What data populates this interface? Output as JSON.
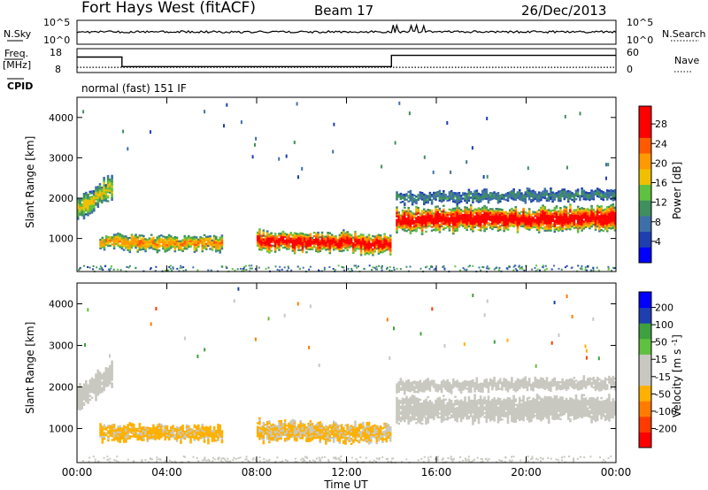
{
  "header": {
    "radar": "Fort Hays West (fitACF)",
    "beam": "Beam 17",
    "date": "26/Dec/2013"
  },
  "noise_panel": {
    "left_label": "N.Sky",
    "right_label": "N.Search",
    "left_ticks": [
      "10^5",
      "10^0"
    ],
    "right_ticks": [
      "10^5",
      "10^0"
    ]
  },
  "freq_panel": {
    "left_label_line1": "Freq.",
    "left_label_line2": "[MHz]",
    "left_ticks": [
      "18",
      "8"
    ],
    "right_label": "Nave",
    "right_ticks": [
      "60",
      "0"
    ],
    "series": [
      {
        "key": "freq",
        "style": "solid",
        "points": [
          [
            0,
            14.5
          ],
          [
            2,
            14.5
          ],
          [
            2,
            10.5
          ],
          [
            14,
            10.5
          ],
          [
            14,
            15.2
          ],
          [
            24,
            15.2
          ]
        ]
      },
      {
        "key": "nave",
        "style": "dotted",
        "points": [
          [
            0,
            10.2
          ],
          [
            24,
            10.2
          ]
        ]
      }
    ]
  },
  "cpid": {
    "label": "CPID",
    "program": "normal (fast) 151 IF"
  },
  "colors": {
    "power_scale": [
      "#0000ff",
      "#1f3fb0",
      "#3f6fa8",
      "#3f8f5f",
      "#60c040",
      "#f0c000",
      "#ff9900",
      "#ff5a00",
      "#ff0000",
      "#ff0000"
    ],
    "velocity_scale": [
      "#ff0000",
      "#ff3a00",
      "#ff7b00",
      "#ffb000",
      "#c8c8c0",
      "#c8c8c0",
      "#60c040",
      "#3fa040",
      "#1f3fb0",
      "#0000ff"
    ],
    "gray": "#c8c8c0"
  },
  "chart_data": [
    {
      "type": "heatmap",
      "title": "Power",
      "xlabel": "",
      "ylabel": "Slant Range [km]",
      "x_ticks": [
        "00:00",
        "04:00",
        "08:00",
        "12:00",
        "16:00",
        "20:00",
        "00:00"
      ],
      "y_ticks": [
        "1000",
        "2000",
        "3000",
        "4000"
      ],
      "xlim": [
        0,
        24
      ],
      "ylim": [
        180,
        4500
      ],
      "colorbar": {
        "label": "Power [dB]",
        "ticks": [
          "28",
          "24",
          "20",
          "16",
          "12",
          "8",
          "4"
        ],
        "range": [
          0,
          30
        ]
      },
      "regions": [
        {
          "t": [
            0,
            1.6
          ],
          "r_center": [
            1700,
            2300
          ],
          "half_width": 280,
          "peak": 16,
          "edge": 6
        },
        {
          "t": [
            1.0,
            6.5
          ],
          "r_center": [
            900,
            870
          ],
          "half_width": 180,
          "peak": 20,
          "edge": 7
        },
        {
          "t": [
            8.0,
            14.0
          ],
          "r_center": [
            950,
            870
          ],
          "half_width": 230,
          "peak": 27,
          "edge": 8
        },
        {
          "t": [
            14.2,
            24
          ],
          "r_center": [
            1450,
            1500
          ],
          "half_width": 280,
          "peak": 28,
          "edge": 8
        },
        {
          "t": [
            14.2,
            24
          ],
          "r_center": [
            2000,
            2100
          ],
          "half_width": 130,
          "peak": 10,
          "edge": 4
        }
      ]
    },
    {
      "type": "heatmap",
      "title": "Velocity",
      "xlabel": "Time UT",
      "ylabel": "Slant Range [km]",
      "x_ticks": [
        "00:00",
        "04:00",
        "08:00",
        "12:00",
        "16:00",
        "20:00",
        "00:00"
      ],
      "y_ticks": [
        "1000",
        "2000",
        "3000",
        "4000"
      ],
      "xlim": [
        0,
        24
      ],
      "ylim": [
        180,
        4500
      ],
      "colorbar": {
        "label": "Velocity [m s^-1]",
        "ticks": [
          "200",
          "100",
          "50",
          "15",
          "-15",
          "-50",
          "-100",
          "-200"
        ],
        "range": [
          -250,
          250
        ]
      },
      "regions": [
        {
          "t": [
            0,
            1.6
          ],
          "r_center": [
            1700,
            2300
          ],
          "half_width": 280,
          "value": 0
        },
        {
          "t": [
            1.0,
            6.5
          ],
          "r_center": [
            900,
            870
          ],
          "half_width": 180,
          "value": -60
        },
        {
          "t": [
            8.0,
            14.0
          ],
          "r_center": [
            950,
            870
          ],
          "half_width": 230,
          "value": -55
        },
        {
          "t": [
            14.2,
            24
          ],
          "r_center": [
            1450,
            1500
          ],
          "half_width": 280,
          "value": 0
        },
        {
          "t": [
            14.2,
            24
          ],
          "r_center": [
            2000,
            2100
          ],
          "half_width": 130,
          "value": 5
        }
      ]
    }
  ]
}
